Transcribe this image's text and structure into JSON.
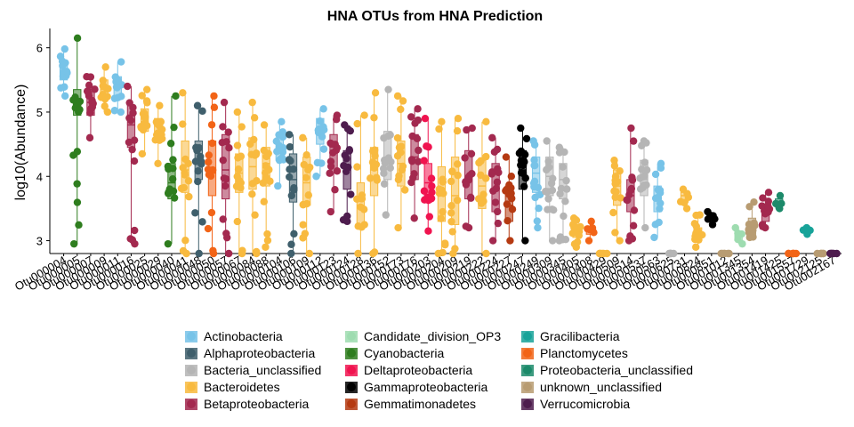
{
  "chart_data": {
    "type": "box",
    "title": "HNA OTUs from HNA Prediction",
    "xlabel": "",
    "ylabel": "log10(Abundance)",
    "ylim": [
      2.8,
      6.3
    ],
    "yticks": [
      3,
      4,
      5,
      6
    ],
    "legend_position": "bottom",
    "grid": false,
    "xtick_labels": [
      "Otu000004",
      "Otu000005",
      "Otu000007",
      "Otu000009",
      "Otu000011",
      "Otu000016",
      "Otu000025",
      "Otu000029",
      "Otu000040",
      "Otu000041",
      "Otu000048",
      "Otu000050",
      "Otu000057",
      "Otu000067",
      "Otu000084",
      "Otu000088",
      "Otu000104",
      "Otu000106",
      "Otu000109",
      "Otu000112",
      "Otu000123",
      "Otu000124",
      "Otu000128",
      "Otu000136",
      "Otu000152",
      "Otu000173",
      "Otu000176",
      "Otu000203",
      "Otu000204",
      "Otu000209",
      "Otu000219",
      "Otu000222",
      "Otu000224",
      "Otu000227",
      "Otu000247",
      "Otu000249",
      "Otu000309",
      "Otu000345",
      "Otu000405",
      "Otu000408",
      "Otu000429",
      "Otu000509",
      "Otu000514",
      "Otu000537",
      "Otu000563",
      "Otu000625",
      "Otu000731",
      "Otu000824",
      "Otu000851",
      "Otu001012",
      "Otu001345",
      "Otu001354",
      "Otu001419",
      "Otu001425",
      "Otu001557",
      "Otu001729",
      "Otu002125",
      "Otu002167"
    ],
    "series": [
      {
        "name": "Actinobacteria",
        "color": "#77C3E8"
      },
      {
        "name": "Alphaproteobacteria",
        "color": "#3F5F6C"
      },
      {
        "name": "Bacteria_unclassified",
        "color": "#B5B5B5"
      },
      {
        "name": "Bacteroidetes",
        "color": "#F8BA3F"
      },
      {
        "name": "Betaproteobacteria",
        "color": "#A3294F"
      },
      {
        "name": "Candidate_division_OP3",
        "color": "#9EDCB0"
      },
      {
        "name": "Cyanobacteria",
        "color": "#2E7D1E"
      },
      {
        "name": "Deltaproteobacteria",
        "color": "#F0134F"
      },
      {
        "name": "Gammaproteobacteria",
        "color": "#000000"
      },
      {
        "name": "Gemmatimonadetes",
        "color": "#B53A12"
      },
      {
        "name": "Gracilibacteria",
        "color": "#18A399"
      },
      {
        "name": "Planctomycetes",
        "color": "#F26417"
      },
      {
        "name": "Proteobacteria_unclassified",
        "color": "#1C8A6A"
      },
      {
        "name": "unknown_unclassified",
        "color": "#B89C72"
      },
      {
        "name": "Verrucomicrobia",
        "color": "#4E1D4E"
      }
    ],
    "boxes": [
      {
        "otu": "Otu000004",
        "phylum": "Actinobacteria",
        "min": 5.25,
        "q1": 5.5,
        "median": 5.65,
        "q3": 5.8,
        "max": 5.98
      },
      {
        "otu": "Otu000005",
        "phylum": "Cyanobacteria",
        "min": 2.95,
        "q1": 4.95,
        "median": 5.1,
        "q3": 5.35,
        "max": 6.15
      },
      {
        "otu": "Otu000007",
        "phylum": "Betaproteobacteria",
        "min": 4.6,
        "q1": 4.95,
        "median": 5.15,
        "q3": 5.35,
        "max": 5.55
      },
      {
        "otu": "Otu000009",
        "phylum": "Bacteroidetes",
        "min": 5.0,
        "q1": 5.2,
        "median": 5.35,
        "q3": 5.5,
        "max": 5.7
      },
      {
        "otu": "Otu000011",
        "phylum": "Actinobacteria",
        "min": 5.0,
        "q1": 5.25,
        "median": 5.4,
        "q3": 5.55,
        "max": 5.78
      },
      {
        "otu": "Otu000016",
        "phylum": "Betaproteobacteria",
        "min": 2.95,
        "q1": 4.45,
        "median": 4.8,
        "q3": 5.1,
        "max": 5.4
      },
      {
        "otu": "Otu000025",
        "phylum": "Bacteroidetes",
        "min": 4.35,
        "q1": 4.7,
        "median": 4.85,
        "q3": 5.05,
        "max": 5.35
      },
      {
        "otu": "Otu000029",
        "phylum": "Bacteroidetes",
        "min": 4.2,
        "q1": 4.55,
        "median": 4.7,
        "q3": 4.9,
        "max": 5.1
      },
      {
        "otu": "Otu000040",
        "phylum": "Cyanobacteria",
        "min": 2.95,
        "q1": 3.65,
        "median": 3.9,
        "q3": 4.2,
        "max": 5.25
      },
      {
        "otu": "Otu000041",
        "phylum": "Bacteroidetes",
        "min": 2.8,
        "q1": 3.75,
        "median": 4.1,
        "q3": 4.55,
        "max": 5.3
      },
      {
        "otu": "Otu000048",
        "phylum": "Alphaproteobacteria",
        "min": 2.8,
        "q1": 3.95,
        "median": 4.2,
        "q3": 4.55,
        "max": 5.1
      },
      {
        "otu": "Otu000050",
        "phylum": "Planctomycetes",
        "min": 2.8,
        "q1": 3.7,
        "median": 4.05,
        "q3": 4.55,
        "max": 5.25
      },
      {
        "otu": "Otu000057",
        "phylum": "Betaproteobacteria",
        "min": 2.8,
        "q1": 3.65,
        "median": 4.1,
        "q3": 4.65,
        "max": 5.15
      },
      {
        "otu": "Otu000067",
        "phylum": "Bacteroidetes",
        "min": 2.8,
        "q1": 3.75,
        "median": 4.05,
        "q3": 4.35,
        "max": 5.0
      },
      {
        "otu": "Otu000084",
        "phylum": "Bacteroidetes",
        "min": 2.8,
        "q1": 3.8,
        "median": 4.15,
        "q3": 4.6,
        "max": 5.15
      },
      {
        "otu": "Otu000088",
        "phylum": "Bacteroidetes",
        "min": 2.9,
        "q1": 3.85,
        "median": 4.2,
        "q3": 4.45,
        "max": 4.8
      },
      {
        "otu": "Otu000104",
        "phylum": "Actinobacteria",
        "min": 3.85,
        "q1": 4.25,
        "median": 4.45,
        "q3": 4.6,
        "max": 4.85
      },
      {
        "otu": "Otu000106",
        "phylum": "Alphaproteobacteria",
        "min": 2.8,
        "q1": 3.6,
        "median": 3.95,
        "q3": 4.35,
        "max": 4.65
      },
      {
        "otu": "Otu000109",
        "phylum": "Bacteroidetes",
        "min": 2.8,
        "q1": 3.55,
        "median": 3.9,
        "q3": 4.3,
        "max": 4.6
      },
      {
        "otu": "Otu000112",
        "phylum": "Actinobacteria",
        "min": 4.0,
        "q1": 4.5,
        "median": 4.75,
        "q3": 4.9,
        "max": 5.05
      },
      {
        "otu": "Otu000123",
        "phylum": "Betaproteobacteria",
        "min": 3.45,
        "q1": 4.05,
        "median": 4.4,
        "q3": 4.65,
        "max": 4.95
      },
      {
        "otu": "Otu000124",
        "phylum": "Verrucomicrobia",
        "min": 3.3,
        "q1": 3.8,
        "median": 4.1,
        "q3": 4.4,
        "max": 4.8
      },
      {
        "otu": "Otu000128",
        "phylum": "Bacteroidetes",
        "min": 2.8,
        "q1": 3.2,
        "median": 3.55,
        "q3": 3.9,
        "max": 4.95
      },
      {
        "otu": "Otu000136",
        "phylum": "Bacteroidetes",
        "min": 2.8,
        "q1": 3.7,
        "median": 4.1,
        "q3": 4.45,
        "max": 5.3
      },
      {
        "otu": "Otu000152",
        "phylum": "Bacteria_unclassified",
        "min": 3.4,
        "q1": 3.95,
        "median": 4.3,
        "q3": 4.7,
        "max": 5.35
      },
      {
        "otu": "Otu000173",
        "phylum": "Bacteroidetes",
        "min": 3.2,
        "q1": 3.85,
        "median": 4.2,
        "q3": 4.55,
        "max": 5.25
      },
      {
        "otu": "Otu000176",
        "phylum": "Betaproteobacteria",
        "min": 3.35,
        "q1": 3.95,
        "median": 4.3,
        "q3": 4.65,
        "max": 5.05
      },
      {
        "otu": "Otu000203",
        "phylum": "Deltaproteobacteria",
        "min": 3.15,
        "q1": 3.6,
        "median": 3.9,
        "q3": 4.2,
        "max": 4.9
      },
      {
        "otu": "Otu000204",
        "phylum": "Bacteroidetes",
        "min": 2.8,
        "q1": 3.3,
        "median": 3.75,
        "q3": 4.15,
        "max": 4.85
      },
      {
        "otu": "Otu000209",
        "phylum": "Bacteroidetes",
        "min": 2.8,
        "q1": 3.25,
        "median": 3.7,
        "q3": 4.3,
        "max": 4.9
      },
      {
        "otu": "Otu000219",
        "phylum": "Betaproteobacteria",
        "min": 3.2,
        "q1": 3.65,
        "median": 3.95,
        "q3": 4.4,
        "max": 4.75
      },
      {
        "otu": "Otu000222",
        "phylum": "Bacteroidetes",
        "min": 2.8,
        "q1": 3.5,
        "median": 3.85,
        "q3": 4.25,
        "max": 4.85
      },
      {
        "otu": "Otu000224",
        "phylum": "Betaproteobacteria",
        "min": 3.0,
        "q1": 3.45,
        "median": 3.8,
        "q3": 4.2,
        "max": 4.6
      },
      {
        "otu": "Otu000227",
        "phylum": "Gemmatimonadetes",
        "min": 3.0,
        "q1": 3.3,
        "median": 3.55,
        "q3": 3.85,
        "max": 4.3
      },
      {
        "otu": "Otu000247",
        "phylum": "Gammaproteobacteria",
        "min": 3.0,
        "q1": 3.8,
        "median": 4.1,
        "q3": 4.4,
        "max": 4.75
      },
      {
        "otu": "Otu000249",
        "phylum": "Actinobacteria",
        "min": 3.2,
        "q1": 3.75,
        "median": 4.05,
        "q3": 4.3,
        "max": 4.55
      },
      {
        "otu": "Otu000309",
        "phylum": "Bacteria_unclassified",
        "min": 3.0,
        "q1": 3.7,
        "median": 4.0,
        "q3": 4.3,
        "max": 4.55
      },
      {
        "otu": "Otu000345",
        "phylum": "Bacteria_unclassified",
        "min": 3.0,
        "q1": 3.65,
        "median": 3.95,
        "q3": 4.2,
        "max": 4.45
      },
      {
        "otu": "Otu000405",
        "phylum": "Bacteroidetes",
        "min": 2.9,
        "q1": 3.05,
        "median": 3.15,
        "q3": 3.25,
        "max": 3.35
      },
      {
        "otu": "Otu000408",
        "phylum": "Planctomycetes",
        "min": 3.0,
        "q1": 3.1,
        "median": 3.15,
        "q3": 3.2,
        "max": 3.3
      },
      {
        "otu": "Otu000429",
        "phylum": "Bacteroidetes",
        "min": 2.8,
        "q1": 2.8,
        "median": 2.8,
        "q3": 2.8,
        "max": 2.8
      },
      {
        "otu": "Otu000509",
        "phylum": "Bacteroidetes",
        "min": 3.0,
        "q1": 3.55,
        "median": 3.85,
        "q3": 4.1,
        "max": 4.25
      },
      {
        "otu": "Otu000514",
        "phylum": "Betaproteobacteria",
        "min": 3.0,
        "q1": 3.45,
        "median": 3.7,
        "q3": 3.95,
        "max": 4.75
      },
      {
        "otu": "Otu000537",
        "phylum": "Bacteria_unclassified",
        "min": 3.2,
        "q1": 3.7,
        "median": 3.95,
        "q3": 4.25,
        "max": 4.55
      },
      {
        "otu": "Otu000563",
        "phylum": "Actinobacteria",
        "min": 3.05,
        "q1": 3.45,
        "median": 3.65,
        "q3": 3.85,
        "max": 4.2
      },
      {
        "otu": "Otu000625",
        "phylum": "Bacteria_unclassified",
        "min": 2.8,
        "q1": 2.8,
        "median": 2.8,
        "q3": 2.8,
        "max": 2.8
      },
      {
        "otu": "Otu000731",
        "phylum": "Bacteroidetes",
        "min": 3.5,
        "q1": 3.6,
        "median": 3.7,
        "q3": 3.75,
        "max": 3.8
      },
      {
        "otu": "Otu000824",
        "phylum": "Bacteroidetes",
        "min": 2.9,
        "q1": 3.0,
        "median": 3.1,
        "q3": 3.2,
        "max": 3.4
      },
      {
        "otu": "Otu000851",
        "phylum": "Gammaproteobacteria",
        "min": 3.25,
        "q1": 3.32,
        "median": 3.37,
        "q3": 3.4,
        "max": 3.45
      },
      {
        "otu": "Otu001012",
        "phylum": "unknown_unclassified",
        "min": 2.8,
        "q1": 2.8,
        "median": 2.8,
        "q3": 2.8,
        "max": 2.8
      },
      {
        "otu": "Otu001345",
        "phylum": "Candidate_division_OP3",
        "min": 2.95,
        "q1": 3.0,
        "median": 3.1,
        "q3": 3.15,
        "max": 3.2
      },
      {
        "otu": "Otu001354",
        "phylum": "unknown_unclassified",
        "min": 3.05,
        "q1": 3.1,
        "median": 3.2,
        "q3": 3.35,
        "max": 3.6
      },
      {
        "otu": "Otu001419",
        "phylum": "Betaproteobacteria",
        "min": 3.2,
        "q1": 3.3,
        "median": 3.4,
        "q3": 3.55,
        "max": 3.75
      },
      {
        "otu": "Otu001425",
        "phylum": "Proteobacteria_unclassified",
        "min": 3.5,
        "q1": 3.55,
        "median": 3.6,
        "q3": 3.65,
        "max": 3.7
      },
      {
        "otu": "Otu001557",
        "phylum": "Planctomycetes",
        "min": 2.8,
        "q1": 2.8,
        "median": 2.8,
        "q3": 2.8,
        "max": 2.8
      },
      {
        "otu": "Otu001729",
        "phylum": "Gracilibacteria",
        "min": 3.1,
        "q1": 3.13,
        "median": 3.15,
        "q3": 3.17,
        "max": 3.2
      },
      {
        "otu": "Otu002125",
        "phylum": "unknown_unclassified",
        "min": 2.8,
        "q1": 2.8,
        "median": 2.8,
        "q3": 2.8,
        "max": 2.8
      },
      {
        "otu": "Otu002167",
        "phylum": "Verrucomicrobia",
        "min": 2.8,
        "q1": 2.8,
        "median": 2.8,
        "q3": 2.8,
        "max": 2.8
      }
    ]
  }
}
